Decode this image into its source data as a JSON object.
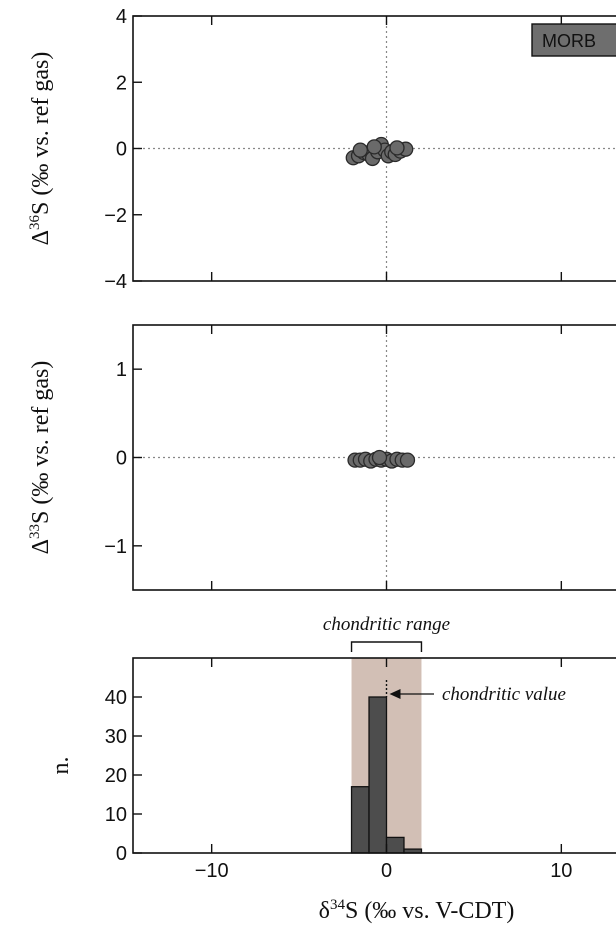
{
  "chart_data": [
    {
      "type": "scatter",
      "panel": "delta36",
      "ylabel_prefix": "Δ",
      "ylabel_sup": "36",
      "ylabel_suffix": "S  (‰ vs. ref gas)",
      "xlim": [
        -14.5,
        14.5
      ],
      "ylim": [
        -4,
        4
      ],
      "yticks": [
        -4,
        -2,
        0,
        2,
        4
      ],
      "ytick_labels": [
        "−4",
        "−2",
        "0",
        "2",
        "4"
      ],
      "xticks": [
        -10,
        0,
        10
      ],
      "badge": "MORB",
      "colors": {
        "marker": "#6a6a6a",
        "edge": "#2a2a2a"
      },
      "points": [
        {
          "x": -1.9,
          "y": -0.28
        },
        {
          "x": -1.6,
          "y": -0.22
        },
        {
          "x": -1.3,
          "y": -0.12
        },
        {
          "x": -1.0,
          "y": -0.18
        },
        {
          "x": -0.8,
          "y": -0.3
        },
        {
          "x": -0.5,
          "y": -0.1
        },
        {
          "x": -0.3,
          "y": 0.12
        },
        {
          "x": -0.1,
          "y": -0.05
        },
        {
          "x": 0.1,
          "y": -0.22
        },
        {
          "x": 0.3,
          "y": -0.1
        },
        {
          "x": 0.5,
          "y": -0.18
        },
        {
          "x": 0.8,
          "y": -0.08
        },
        {
          "x": 1.1,
          "y": -0.02
        },
        {
          "x": -1.5,
          "y": -0.05
        },
        {
          "x": -0.7,
          "y": 0.05
        },
        {
          "x": 0.6,
          "y": 0.02
        }
      ]
    },
    {
      "type": "scatter",
      "panel": "delta33",
      "ylabel_prefix": "Δ",
      "ylabel_sup": "33",
      "ylabel_suffix": "S  (‰ vs. ref gas)",
      "xlim": [
        -14.5,
        14.5
      ],
      "ylim": [
        -1.5,
        1.5
      ],
      "yticks": [
        -1,
        0,
        1
      ],
      "ytick_labels": [
        "−1",
        "0",
        "1"
      ],
      "xticks": [
        -10,
        0,
        10
      ],
      "colors": {
        "marker": "#6a6a6a",
        "edge": "#2a2a2a"
      },
      "points": [
        {
          "x": -1.8,
          "y": -0.03
        },
        {
          "x": -1.5,
          "y": -0.03
        },
        {
          "x": -1.2,
          "y": -0.02
        },
        {
          "x": -0.9,
          "y": -0.04
        },
        {
          "x": -0.6,
          "y": -0.02
        },
        {
          "x": -0.3,
          "y": -0.03
        },
        {
          "x": 0.0,
          "y": -0.02
        },
        {
          "x": 0.3,
          "y": -0.04
        },
        {
          "x": 0.6,
          "y": -0.02
        },
        {
          "x": 0.9,
          "y": -0.03
        },
        {
          "x": 1.2,
          "y": -0.03
        },
        {
          "x": -0.4,
          "y": 0.0
        }
      ]
    },
    {
      "type": "bar",
      "panel": "histogram",
      "ylabel": "n.",
      "xlabel_prefix": "δ",
      "xlabel_sup": "34",
      "xlabel_suffix": "S  (‰ vs. V-CDT)",
      "xlim": [
        -14.5,
        14.5
      ],
      "ylim": [
        0,
        50
      ],
      "yticks": [
        0,
        10,
        20,
        30,
        40
      ],
      "ytick_labels": [
        "0",
        "10",
        "20",
        "30",
        "40"
      ],
      "xticks": [
        -10,
        0,
        10
      ],
      "xtick_labels": [
        "−10",
        "0",
        "10"
      ],
      "bin_width": 1,
      "bins": [
        {
          "start": -2,
          "count": 17
        },
        {
          "start": -1,
          "count": 40
        },
        {
          "start": 0,
          "count": 4
        },
        {
          "start": 1,
          "count": 1
        }
      ],
      "chondritic_range": [
        -2,
        2
      ],
      "chondritic_value": 0,
      "annotations": {
        "range_label": "chondritic range",
        "value_label": "chondritic value"
      },
      "colors": {
        "bar": "#4d4d4d",
        "range_band": "#d2bfb5"
      }
    }
  ]
}
